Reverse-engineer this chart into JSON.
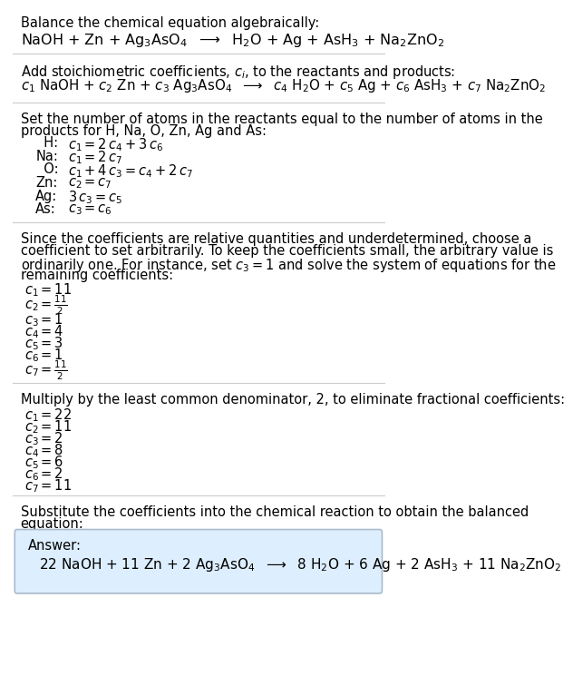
{
  "title_line1": "Balance the chemical equation algebraically:",
  "equation_line": "NaOH + Zn + Ag$_3$AsO$_4$  $\\longrightarrow$  H$_2$O + Ag + AsH$_3$ + Na$_2$ZnO$_2$",
  "section2_intro": "Add stoichiometric coefficients, $c_i$, to the reactants and products:",
  "section2_eq": "$c_1$ NaOH + $c_2$ Zn + $c_3$ Ag$_3$AsO$_4$  $\\longrightarrow$  $c_4$ H$_2$O + $c_5$ Ag + $c_6$ AsH$_3$ + $c_7$ Na$_2$ZnO$_2$",
  "section3_intro": "Set the number of atoms in the reactants equal to the number of atoms in the\nproducts for H, Na, O, Zn, Ag and As:",
  "equations": [
    [
      "  H:",
      "$c_1 = 2\\,c_4 + 3\\,c_6$"
    ],
    [
      "Na:",
      "$c_1 = 2\\,c_7$"
    ],
    [
      "  O:",
      "$c_1 + 4\\,c_3 = c_4 + 2\\,c_7$"
    ],
    [
      "Zn:",
      "$c_2 = c_7$"
    ],
    [
      "Ag:",
      "$3\\,c_3 = c_5$"
    ],
    [
      "As:",
      "$c_3 = c_6$"
    ]
  ],
  "section4_intro": "Since the coefficients are relative quantities and underdetermined, choose a\ncoefficient to set arbitrarily. To keep the coefficients small, the arbitrary value is\nordinarily one. For instance, set $c_3 = 1$ and solve the system of equations for the\nremaining coefficients:",
  "coeffs1": [
    "$c_1 = 11$",
    "$c_2 = \\frac{11}{2}$",
    "$c_3 = 1$",
    "$c_4 = 4$",
    "$c_5 = 3$",
    "$c_6 = 1$",
    "$c_7 = \\frac{11}{2}$"
  ],
  "coeffs1_is_frac": [
    false,
    true,
    false,
    false,
    false,
    false,
    true
  ],
  "section5_intro": "Multiply by the least common denominator, 2, to eliminate fractional coefficients:",
  "coeffs2": [
    "$c_1 = 22$",
    "$c_2 = 11$",
    "$c_3 = 2$",
    "$c_4 = 8$",
    "$c_5 = 6$",
    "$c_6 = 2$",
    "$c_7 = 11$"
  ],
  "section6_intro": "Substitute the coefficients into the chemical reaction to obtain the balanced\nequation:",
  "answer_label": "Answer:",
  "answer_eq": "22 NaOH + 11 Zn + 2 Ag$_3$AsO$_4$  $\\longrightarrow$  8 H$_2$O + 6 Ag + 2 AsH$_3$ + 11 Na$_2$ZnO$_2$",
  "bg_color": "#ffffff",
  "answer_bg": "#ddeeff",
  "answer_border": "#aabbcc",
  "text_color": "#000000",
  "font_size": 10.5,
  "hr_color": "#cccccc"
}
